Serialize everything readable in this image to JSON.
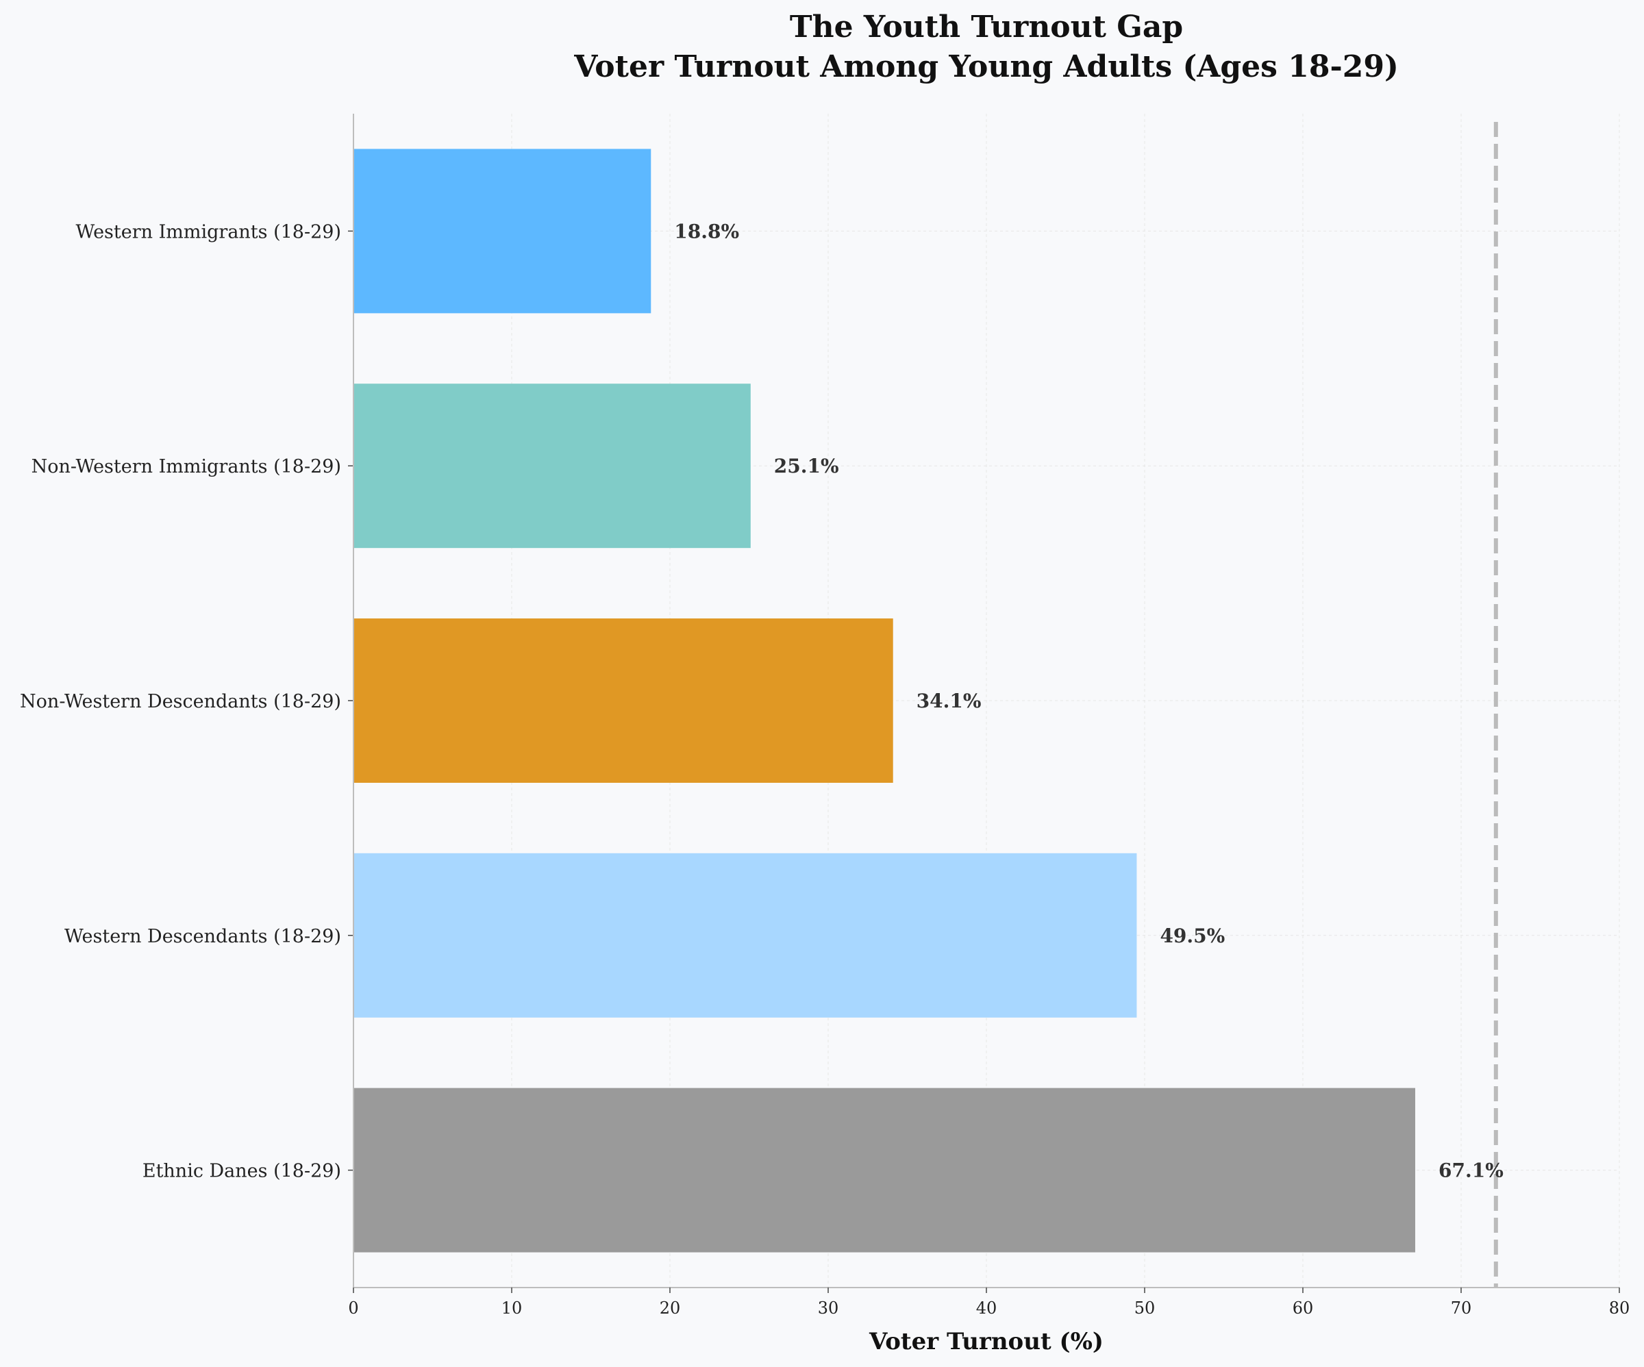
{
  "chart_data": {
    "type": "bar",
    "orientation": "horizontal",
    "title": "The Youth Turnout Gap",
    "subtitle": "Voter Turnout Among Young Adults (Ages 18-29)",
    "xlabel": "Voter Turnout (%)",
    "ylabel": "",
    "xlim": [
      0,
      80
    ],
    "xticks": [
      0,
      10,
      20,
      30,
      40,
      50,
      60,
      70,
      80
    ],
    "grid": true,
    "reference_line": {
      "x": 72.2,
      "style": "dashed",
      "color": "#bbbbbb"
    },
    "categories": [
      "Western Immigrants (18-29)",
      "Non-Western Immigrants (18-29)",
      "Non-Western Descendants (18-29)",
      "Western Descendants (18-29)",
      "Ethnic Danes (18-29)"
    ],
    "values": [
      18.8,
      25.1,
      34.1,
      49.5,
      67.1
    ],
    "value_labels": [
      "18.8%",
      "25.1%",
      "34.1%",
      "49.5%",
      "67.1%"
    ],
    "colors": [
      "#5db8ff",
      "#80ccc8",
      "#e09824",
      "#a8d7ff",
      "#9a9a9a"
    ]
  }
}
